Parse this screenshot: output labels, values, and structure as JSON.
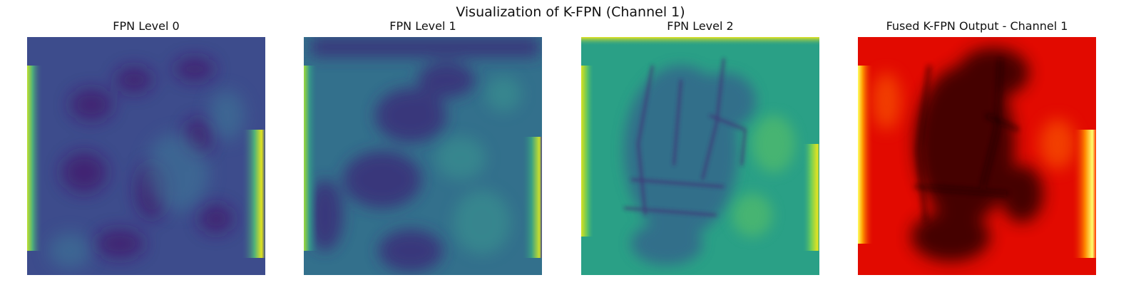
{
  "figure": {
    "title": "Visualization of K-FPN (Channel 1)"
  },
  "panels": [
    {
      "title": "FPN Level 0",
      "colormap": "viridis",
      "base": "#3b4d8d",
      "dark": "#42146b",
      "hi": "#bde031"
    },
    {
      "title": "FPN Level 1",
      "colormap": "viridis",
      "base": "#2f6f8a",
      "dark": "#3a2c78",
      "hi": "#b8de34"
    },
    {
      "title": "FPN Level 2",
      "colormap": "viridis",
      "base": "#2ea387",
      "dark": "#432a72",
      "hi": "#e6e41f"
    },
    {
      "title": "Fused K-FPN Output - Channel 1",
      "colormap": "hot",
      "base": "#e40c00",
      "dark": "#1f0000",
      "hi": "#ffff50"
    }
  ]
}
